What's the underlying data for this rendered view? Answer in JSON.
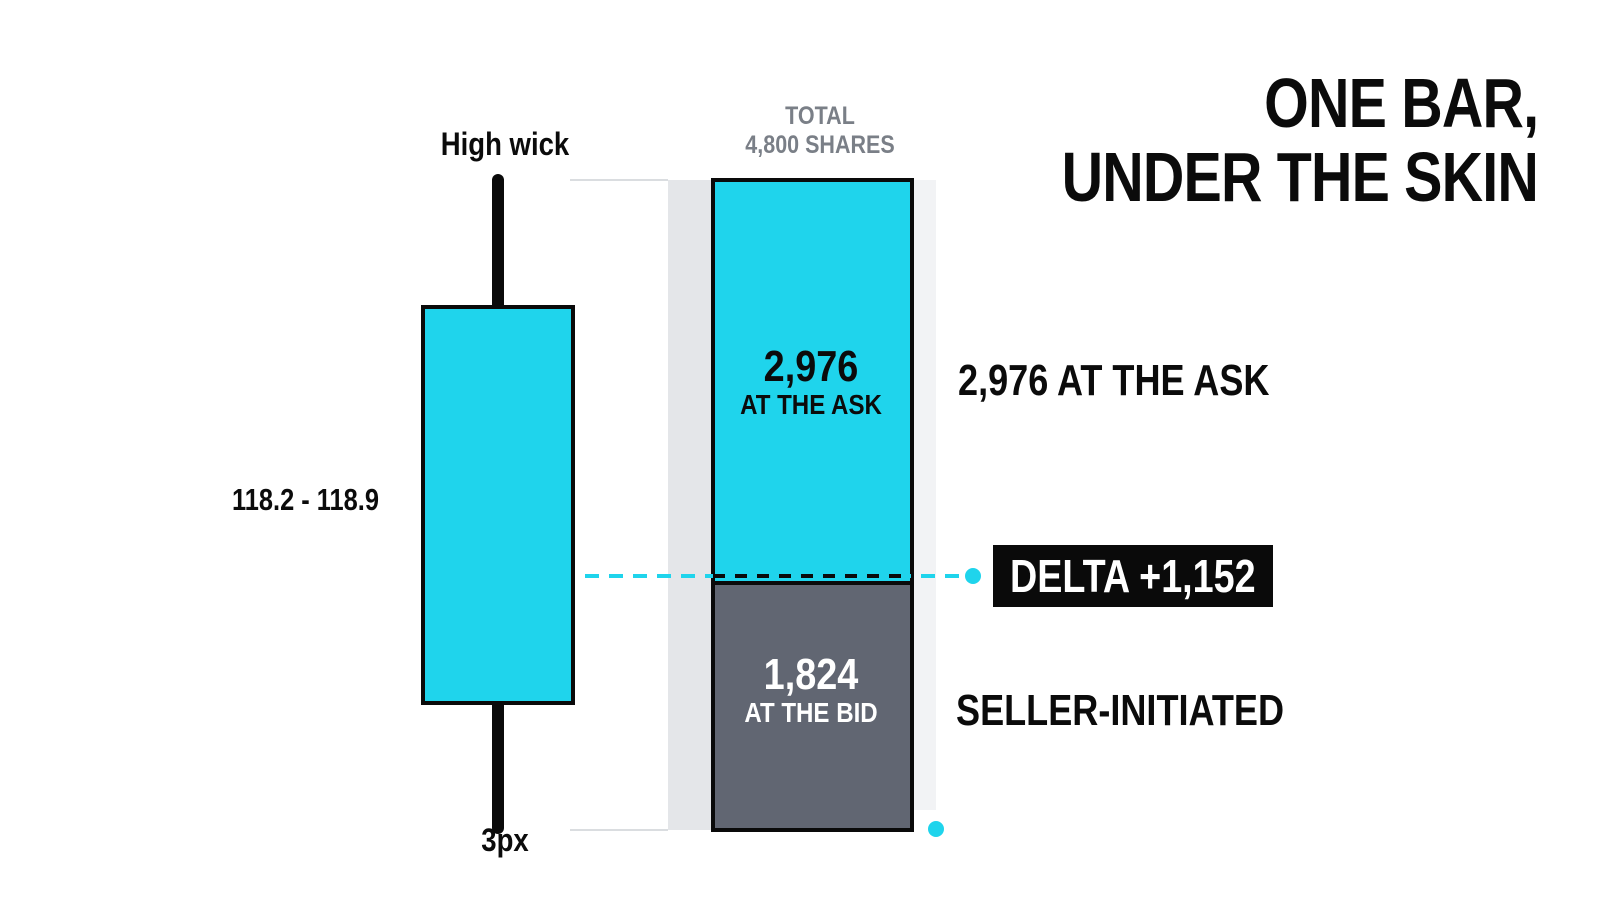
{
  "title": {
    "line1": "ONE BAR,",
    "line2": "UNDER THE SKIN"
  },
  "candle": {
    "high_wick_label": "High wick",
    "range_label": "118.2 - 118.9",
    "width_label": "3px"
  },
  "volume_bar": {
    "total_label_line1": "TOTAL",
    "total_label_line2": "4,800 SHARES",
    "total_shares": 4800,
    "ask": {
      "value": "2,976",
      "sublabel": "AT THE ASK",
      "shares": 2976
    },
    "bid": {
      "value": "1,824",
      "sublabel": "AT THE BID",
      "shares": 1824
    }
  },
  "annotations": {
    "ask_callout": "2,976 AT THE ASK",
    "delta": "DELTA +1,152",
    "seller_callout": "SELLER-INITIATED"
  },
  "colors": {
    "cyan": "#1fd4ec",
    "dark_gray": "#616672",
    "black": "#0a0a0a",
    "light_gray": "#e4e6e9"
  }
}
